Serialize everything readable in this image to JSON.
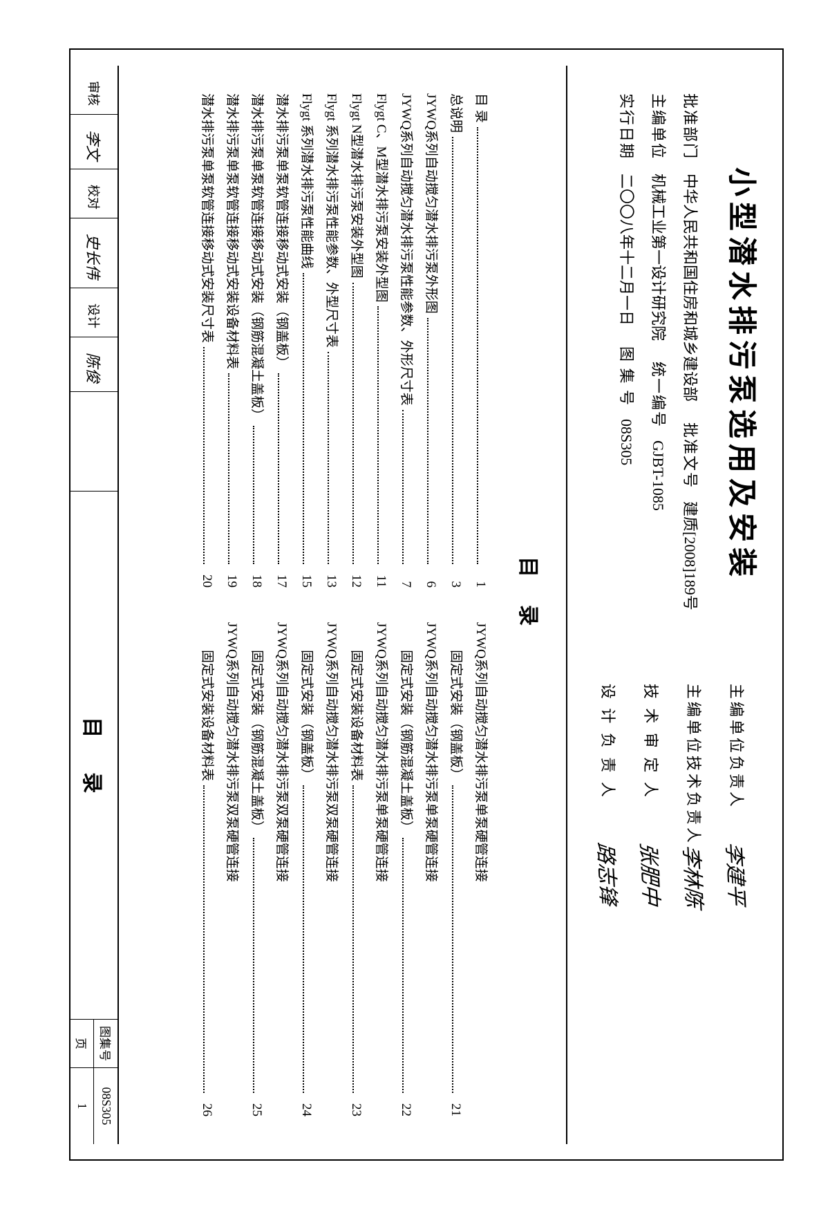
{
  "document": {
    "title": "小型潜水排污泵选用及安装",
    "background_color": "#ffffff",
    "text_color": "#000000",
    "border_color": "#000000",
    "title_fontsize": 42,
    "body_fontsize": 19
  },
  "header": {
    "left_rows": [
      {
        "label": "批准部门",
        "value": "中华人民共和国住房和城乡建设部",
        "label2": "批准文号",
        "value2": "建质[2008]189号"
      },
      {
        "label": "主编单位",
        "value": "机械工业第一设计研究院",
        "label2": "统一编号",
        "value2": "GJBT-1085"
      },
      {
        "label": "实行日期",
        "value": "二〇〇八年十二月一日",
        "label2": "图 集 号",
        "value2": "08S305"
      }
    ],
    "right_rows": [
      {
        "label": "主编单位负责人",
        "signature": "李建平"
      },
      {
        "label": "主编单位技术负责人",
        "signature": "李林陈"
      },
      {
        "label": "技 术 审 定 人",
        "signature": "张肥中"
      },
      {
        "label": "设 计 负 责 人",
        "signature": "路志锋"
      }
    ]
  },
  "toc": {
    "heading": "目录",
    "left": [
      {
        "text": "目 录",
        "page": "1"
      },
      {
        "text": "总说明",
        "page": "3"
      },
      {
        "text": "JYWQ系列自动搅匀潜水排污泵外形图",
        "page": "6"
      },
      {
        "text": "JYWQ系列自动搅匀潜水排污泵性能参数、外形尺寸表",
        "page": "7"
      },
      {
        "text": "Flygt C、M型潜水排污泵安装外型图",
        "page": "11"
      },
      {
        "text": "Flygt N型潜水排污泵安装外型图",
        "page": "12"
      },
      {
        "text": "Flygt 系列潜水排污泵性能参数、外型尺寸表",
        "page": "13"
      },
      {
        "text": "Flygt 系列潜水排污泵性能曲线",
        "page": "15"
      },
      {
        "text": "潜水排污泵单泵软管连接移动式安装（钢盖板）",
        "page": "17"
      },
      {
        "text": "潜水排污泵单泵软管连接移动式安装（钢筋混凝土盖板）",
        "page": "18"
      },
      {
        "text": "潜水排污泵单泵软管连接移动式安装设备材料表",
        "page": "19"
      },
      {
        "text": "潜水排污泵单泵软管连接移动式安装尺寸表",
        "page": "20"
      }
    ],
    "right": [
      {
        "text": "JYWQ系列自动搅匀潜水排污泵单泵硬管连接",
        "sub": "固定式安装（钢盖板）",
        "page": "21"
      },
      {
        "text": "JYWQ系列自动搅匀潜水排污泵单泵硬管连接",
        "sub": "固定式安装（钢筋混凝土盖板）",
        "page": "22"
      },
      {
        "text": "JYWQ系列自动搅匀潜水排污泵单泵硬管连接",
        "sub": "固定式安装设备材料表",
        "page": "23"
      },
      {
        "text": "JYWQ系列自动搅匀潜水排污泵双泵硬管连接",
        "sub": "固定式安装（钢盖板）",
        "page": "24"
      },
      {
        "text": "JYWQ系列自动搅匀潜水排污泵双泵硬管连接",
        "sub": "固定式安装（钢筋混凝土盖板）",
        "page": "25"
      },
      {
        "text": "JYWQ系列自动搅匀潜水排污泵双泵硬管连接",
        "sub": "固定式安装设备材料表",
        "page": "26"
      }
    ]
  },
  "footer": {
    "left_cells": [
      {
        "label": "审核",
        "sign": "李文"
      },
      {
        "label": "",
        "sign": "李文"
      },
      {
        "label": "校对",
        "sign": "史长伟"
      },
      {
        "label": "",
        "sign": "史长伟"
      },
      {
        "label": "设计",
        "sign": "陈俊"
      },
      {
        "label": "",
        "sign": "陈俊"
      }
    ],
    "center": "目录",
    "right": [
      {
        "label": "图集号",
        "value": "08S305"
      },
      {
        "label": "页",
        "value": "1"
      }
    ]
  }
}
